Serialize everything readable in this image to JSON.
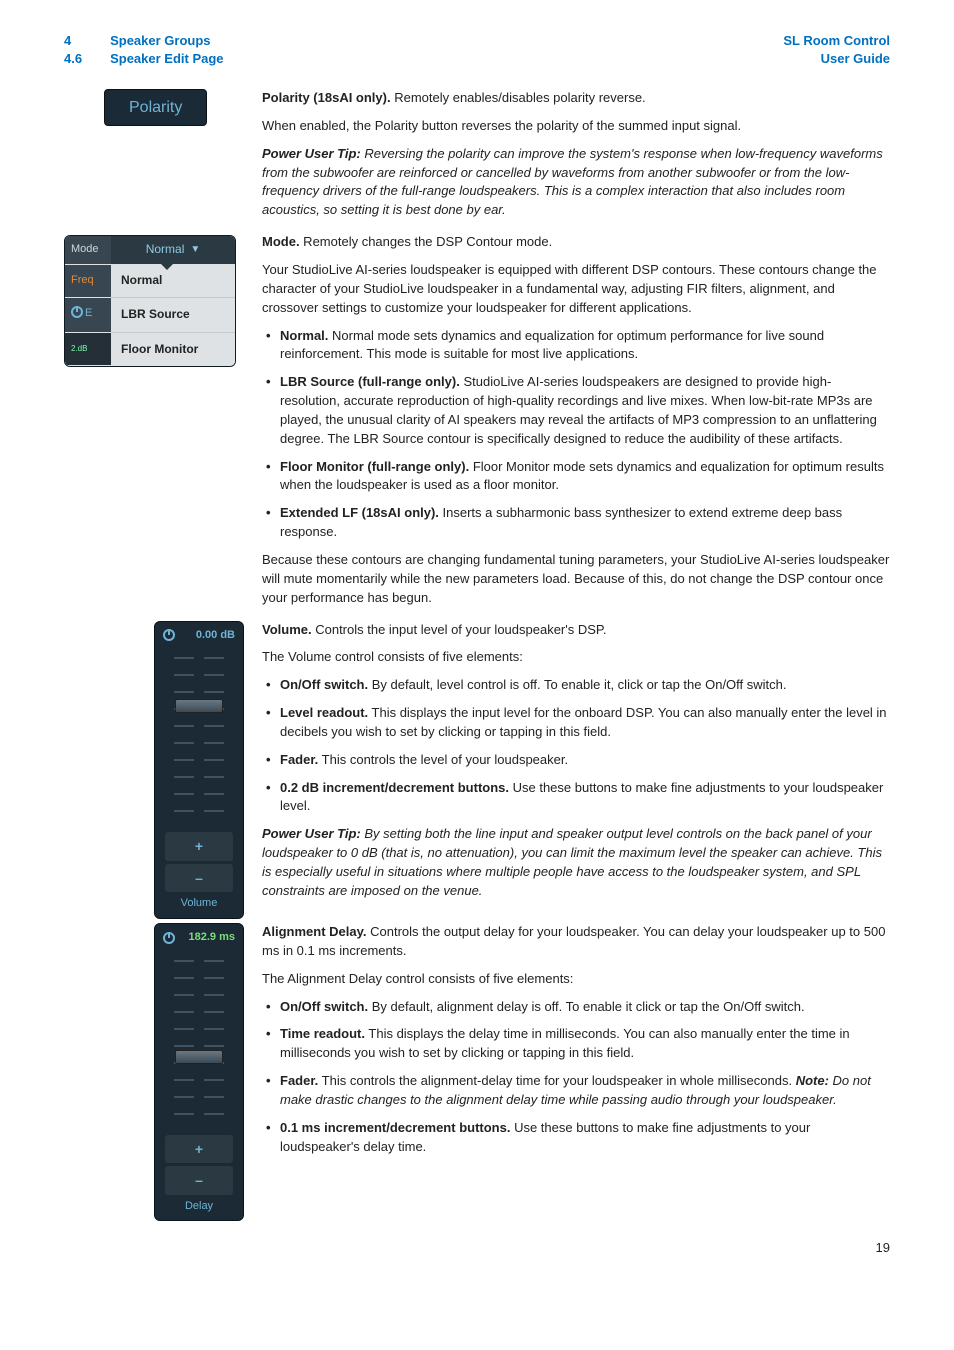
{
  "header": {
    "sec_num_1": "4",
    "sec_num_2": "4.6",
    "sec_title_1": "Speaker Groups",
    "sec_title_2": "Speaker Edit Page",
    "doc_title": "SL Room Control",
    "doc_sub": "User Guide"
  },
  "polarity": {
    "pill": "Polarity",
    "p1a": "Polarity (18sAI only).",
    "p1b": " Remotely enables/disables polarity reverse.",
    "p2": "When enabled, the Polarity button reverses the polarity of the summed input signal.",
    "tip_label": "Power User Tip:",
    "tip": " Reversing the polarity can improve the system's response when low-frequency waveforms from the subwoofer are reinforced or cancelled by waveforms from another subwoofer or from the low-frequency drivers of the full-range loudspeakers. This is a complex interaction that also includes room acoustics, so setting it is best done by ear."
  },
  "mode": {
    "fig": {
      "label_mode": "Mode",
      "selected": "Normal",
      "label_freq": "Freq",
      "opt1": "Normal",
      "label_e": "E",
      "opt2": "LBR Source",
      "bottomnum": "2.dB",
      "opt3": "Floor Monitor"
    },
    "h_a": "Mode.",
    "h_b": " Remotely changes the DSP Contour mode.",
    "p1": "Your StudioLive AI-series loudspeaker is equipped with different DSP contours. These contours change the character of your StudioLive loudspeaker in a fundamental way, adjusting FIR filters, alignment, and crossover settings to customize your loudspeaker for different applications.",
    "b1a": "Normal.",
    "b1b": " Normal mode sets dynamics and equalization for optimum performance for live sound reinforcement. This mode is suitable for most live applications.",
    "b2a": "LBR Source (full-range only).",
    "b2b": " StudioLive AI-series loudspeakers are designed to provide high-resolution, accurate reproduction of high-quality recordings and live mixes. When low-bit-rate MP3s are played, the unusual clarity of AI speakers may reveal the artifacts of MP3 compression to an unflattering degree. The LBR Source contour is specifically designed to reduce the audibility of these artifacts.",
    "b3a": "Floor Monitor (full-range only).",
    "b3b": " Floor Monitor mode sets dynamics and equalization for optimum results when the loudspeaker is used as a floor monitor.",
    "b4a": "Extended LF (18sAI only).",
    "b4b": " Inserts a subharmonic bass synthesizer to extend extreme deep bass response.",
    "p2": "Because these contours are changing fundamental tuning parameters, your StudioLive AI-series loudspeaker will mute momentarily while the new parameters load. Because of this, do not change the DSP contour once your performance has begun."
  },
  "volume": {
    "fig": {
      "readout": "0.00 dB",
      "name": "Volume",
      "plus": "+",
      "minus": "–"
    },
    "h_a": "Volume.",
    "h_b": " Controls the input level of your loudspeaker's DSP.",
    "p1": "The Volume control consists of five elements:",
    "b1a": "On/Off switch.",
    "b1b": " By default, level control is off. To enable it, click or tap the On/Off switch.",
    "b2a": "Level readout.",
    "b2b": " This displays the input level for the onboard DSP. You can also manually enter the level in decibels you wish to set by clicking or tapping in this field.",
    "b3a": "Fader.",
    "b3b": " This controls the level of your loudspeaker.",
    "b4a": "0.2 dB increment/decrement buttons.",
    "b4b": " Use these buttons to make fine adjustments to your loudspeaker level.",
    "tip_label": "Power User Tip:",
    "tip": " By setting both the line input and speaker output level controls on the back panel of your loudspeaker to 0 dB (that is, no attenuation), you can limit the maximum level the speaker can achieve. This is especially useful in situations where multiple people have access to the loudspeaker system, and SPL constraints are imposed on the venue."
  },
  "delay": {
    "fig": {
      "readout": "182.9 ms",
      "name": "Delay",
      "plus": "+",
      "minus": "–"
    },
    "h_a": "Alignment Delay.",
    "h_b": " Controls the output delay for your loudspeaker. You can delay your loudspeaker up to 500 ms in 0.1 ms increments.",
    "p1": "The Alignment Delay control consists of five elements:",
    "b1a": "On/Off switch.",
    "b1b": " By default, alignment delay is off. To enable it click or tap the On/Off switch.",
    "b2a": "Time readout.",
    "b2b": " This displays the delay time in milliseconds. You can also manually enter the time in milliseconds you wish to set by clicking or tapping in this field.",
    "b3a": "Fader.",
    "b3b": " This controls the alignment-delay time for your loudspeaker in whole milliseconds. ",
    "b3note_a": "Note:",
    "b3note_b": " Do not make drastic changes to the alignment delay time while passing audio through your loudspeaker.",
    "b4a": "0.1 ms increment/decrement buttons.",
    "b4b": " Use these buttons to make fine adjustments to your loudspeaker's delay time."
  },
  "pagenum": "19",
  "vol_knob_top_pct": 27,
  "delay_knob_top_pct": 55
}
